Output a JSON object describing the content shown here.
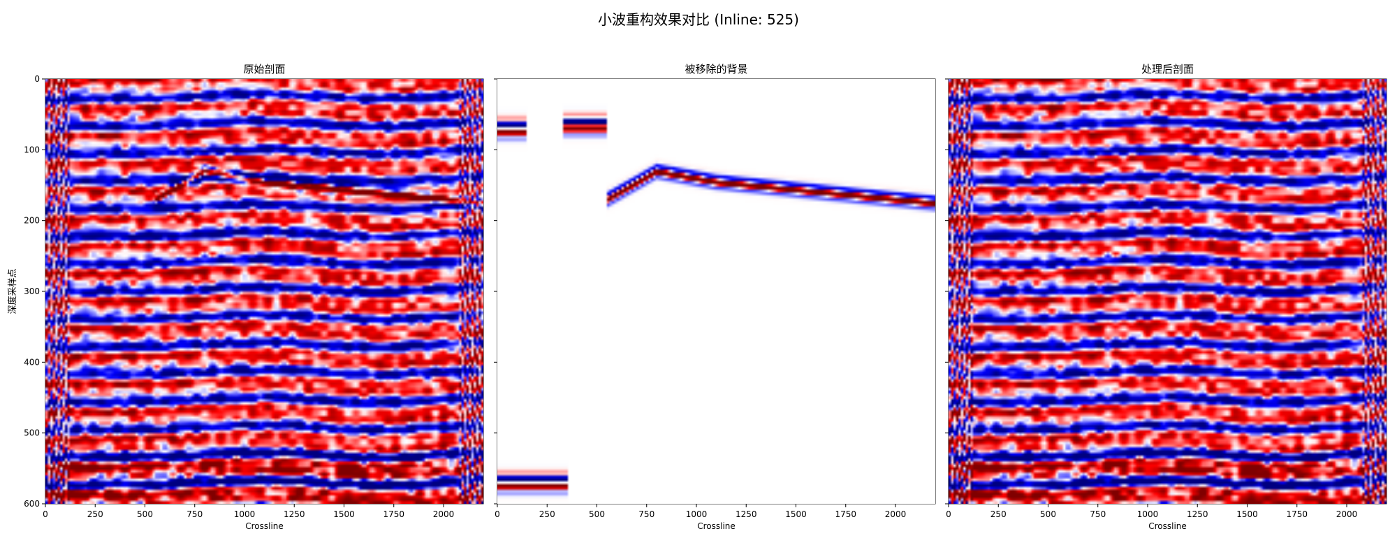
{
  "figure": {
    "suptitle": "小波重构效果对比 (Inline: 525)"
  },
  "colors": {
    "positive": "#b2001f",
    "negative": "#00008c",
    "background": "#ffffff"
  },
  "chart_data": [
    {
      "type": "heatmap",
      "title": "原始剖面",
      "xlabel": "Crossline",
      "ylabel": "深度采样点",
      "x_range": [
        0,
        2200
      ],
      "y_range": [
        0,
        600
      ],
      "y_inverted": true,
      "xticks": [
        "0",
        "250",
        "500",
        "750",
        "1000",
        "1250",
        "1500",
        "1750",
        "2000"
      ],
      "yticks": [
        "0",
        "100",
        "200",
        "300",
        "400",
        "500",
        "600"
      ],
      "colormap": "seismic",
      "content": "full",
      "strong_reflector": {
        "from_x": 550,
        "to_x": 2150,
        "depth_start": 165,
        "depth_end": 170
      }
    },
    {
      "type": "heatmap",
      "title": "被移除的背景",
      "xlabel": "Crossline",
      "ylabel": "",
      "x_range": [
        0,
        2200
      ],
      "y_range": [
        0,
        600
      ],
      "y_inverted": true,
      "xticks": [
        "0",
        "250",
        "500",
        "750",
        "1000",
        "1250",
        "1500",
        "1750",
        "2000"
      ],
      "yticks": [],
      "colormap": "seismic",
      "content": "sparse",
      "removed_reflector": {
        "from_x": 550,
        "to_x": 2200,
        "depth_start": 170,
        "depth_peak": 130,
        "depth_end": 175
      },
      "removed_patches": [
        {
          "x_from": 0,
          "x_to": 150,
          "depth": 70
        },
        {
          "x_from": 330,
          "x_to": 550,
          "depth": 65
        },
        {
          "x_from": 0,
          "x_to": 360,
          "depth": 570
        }
      ]
    },
    {
      "type": "heatmap",
      "title": "处理后剖面",
      "xlabel": "Crossline",
      "ylabel": "",
      "x_range": [
        0,
        2200
      ],
      "y_range": [
        0,
        600
      ],
      "y_inverted": true,
      "xticks": [
        "0",
        "250",
        "500",
        "750",
        "1000",
        "1250",
        "1500",
        "1750",
        "2000"
      ],
      "yticks": [],
      "colormap": "seismic",
      "content": "processed"
    }
  ]
}
